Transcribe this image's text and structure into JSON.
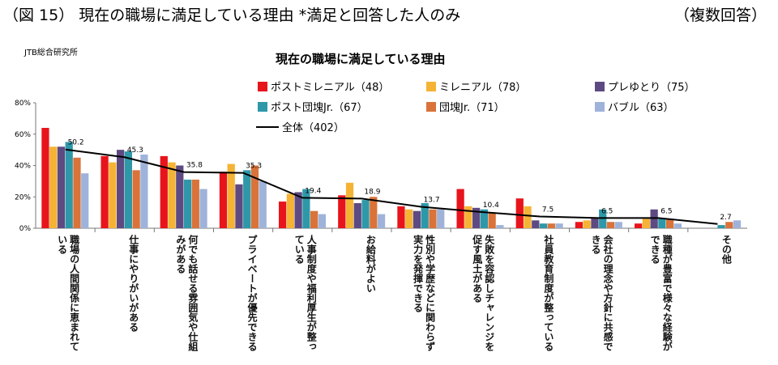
{
  "header": {
    "title": "（図 15） 現在の職場に満足している理由 *満足と回答した人のみ",
    "note": "（複数回答）"
  },
  "chart_data": {
    "type": "bar",
    "source": "JTB総合研究所",
    "title": "現在の職場に満足している理由",
    "categories": [
      "職場の人間関係に恵まれている",
      "仕事にやりがいがある",
      "何でも話せる雰囲気や仕組みがある",
      "プライベートが優先できる",
      "人事制度や福利厚生が整っている",
      "お給料がよい",
      "性別や学歴などに関わらず実力を発揮できる",
      "失敗を容認しチャレンジを促す風土がある",
      "社員教育制度が整っている",
      "会社の理念や方針に共感できる",
      "職種が豊富で様々な経験ができる",
      "その他"
    ],
    "series": [
      {
        "name": "ポストミレニアル（48）",
        "color": "#e8141c",
        "values": [
          64,
          46,
          46,
          36,
          17,
          21,
          14,
          25,
          19,
          4,
          3,
          0
        ]
      },
      {
        "name": "ミレニアル（78）",
        "color": "#f5b335",
        "values": [
          52,
          42,
          42,
          41,
          22,
          29,
          12,
          14,
          14,
          5,
          6,
          0
        ]
      },
      {
        "name": "プレゆとり（75）",
        "color": "#5e4a82",
        "values": [
          52,
          50,
          40,
          28,
          23,
          16,
          11,
          13,
          5,
          7,
          12,
          0
        ]
      },
      {
        "name": "ポスト団塊Jr.（67）",
        "color": "#2e98a8",
        "values": [
          55,
          49,
          31,
          37,
          25,
          18,
          16,
          12,
          3,
          12,
          6,
          2
        ]
      },
      {
        "name": "団塊Jr.（71）",
        "color": "#d9733a",
        "values": [
          45,
          37,
          31,
          40,
          11,
          20,
          12,
          10,
          3,
          4,
          6,
          4
        ]
      },
      {
        "name": "バブル（63）",
        "color": "#9fb3da",
        "values": [
          35,
          47,
          25,
          30,
          9,
          9,
          12,
          2,
          3,
          4,
          3,
          5
        ]
      },
      {
        "name": "全体（402）",
        "color": "#000000",
        "type": "line",
        "values": [
          50.2,
          45.3,
          35.8,
          35.3,
          19.4,
          18.9,
          13.7,
          10.4,
          7.5,
          6.5,
          6.5,
          2.7
        ]
      }
    ],
    "ylim": [
      0,
      80
    ],
    "yticks": [
      {
        "value": 0,
        "label": "0%"
      },
      {
        "value": 20,
        "label": "20%"
      },
      {
        "value": 40,
        "label": "40%"
      },
      {
        "value": 60,
        "label": "60%"
      },
      {
        "value": 80,
        "label": "80%"
      }
    ]
  }
}
